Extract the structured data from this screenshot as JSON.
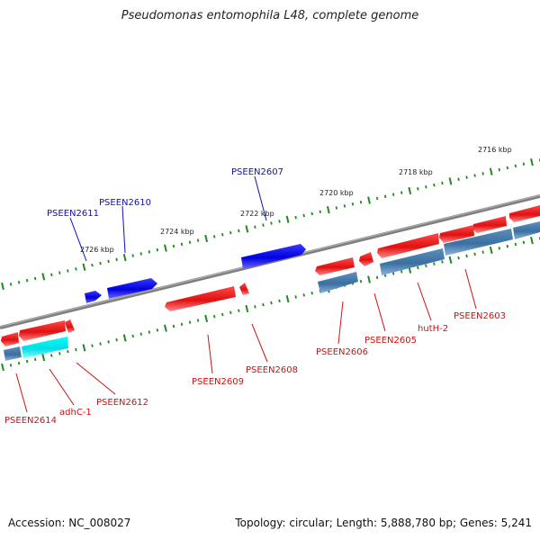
{
  "header": {
    "title": "Pseudomonas entomophila L48, complete genome"
  },
  "footer": {
    "accession": "Accession: NC_008027",
    "stats": "Topology: circular; Length: 5,888,780 bp; Genes: 5,241"
  },
  "colors": {
    "backbone": "#7f7f7f",
    "tick": "#1f8a1f",
    "forward_gene": "#1010ee",
    "reverse_gene": "#ee1111",
    "forward_label": "#1010bb",
    "reverse_label": "#cc1111",
    "rna_gene": "#4682b4",
    "highlight_gene": "#00e5ee"
  },
  "ticks": [
    {
      "label": "2716 kbp"
    },
    {
      "label": "2718 kbp"
    },
    {
      "label": "2720 kbp"
    },
    {
      "label": "2722 kbp"
    },
    {
      "label": "2724 kbp"
    },
    {
      "label": "2726 kbp"
    }
  ],
  "genes": [
    {
      "label": "PSEEN2607",
      "strand": "forward"
    },
    {
      "label": "PSEEN2610",
      "strand": "forward"
    },
    {
      "label": "PSEEN2611",
      "strand": "forward"
    },
    {
      "label": "PSEEN2603",
      "strand": "reverse"
    },
    {
      "label": "hutH-2",
      "strand": "reverse"
    },
    {
      "label": "PSEEN2605",
      "strand": "reverse"
    },
    {
      "label": "PSEEN2606",
      "strand": "reverse"
    },
    {
      "label": "PSEEN2608",
      "strand": "reverse"
    },
    {
      "label": "PSEEN2609",
      "strand": "reverse"
    },
    {
      "label": "PSEEN2612",
      "strand": "reverse"
    },
    {
      "label": "adhC-1",
      "strand": "reverse"
    },
    {
      "label": "PSEEN2614",
      "strand": "reverse"
    }
  ]
}
